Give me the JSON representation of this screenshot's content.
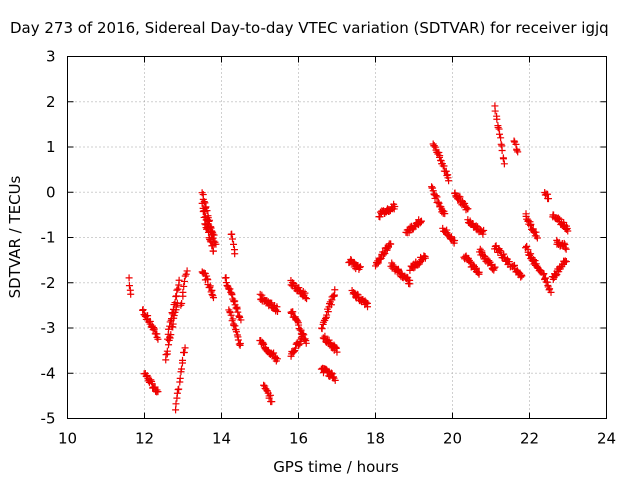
{
  "chart_data": {
    "type": "scatter",
    "title": "Day 273 of 2016, Sidereal Day-to-day VTEC variation (SDTVAR) for receiver igjq",
    "xlabel": "GPS time / hours",
    "ylabel": "SDTVAR / TECUs",
    "xlim": [
      10,
      24
    ],
    "ylim": [
      -5,
      3
    ],
    "xticks": [
      10,
      12,
      14,
      16,
      18,
      20,
      22,
      24
    ],
    "yticks": [
      -5,
      -4,
      -3,
      -2,
      -1,
      0,
      1,
      2,
      3
    ],
    "grid": true,
    "marker": "+",
    "color": "#ee0000",
    "segments": [
      {
        "x0": 11.6,
        "x1": 11.65,
        "y0": -1.9,
        "y1": -2.3
      },
      {
        "x0": 11.95,
        "x1": 12.35,
        "y0": -2.6,
        "y1": -3.2
      },
      {
        "x0": 12.0,
        "x1": 12.35,
        "y0": -4.0,
        "y1": -4.45
      },
      {
        "x0": 12.55,
        "x1": 12.85,
        "y0": -3.7,
        "y1": -2.4
      },
      {
        "x0": 12.6,
        "x1": 12.9,
        "y0": -3.2,
        "y1": -2.0
      },
      {
        "x0": 12.8,
        "x1": 13.05,
        "y0": -4.8,
        "y1": -3.4
      },
      {
        "x0": 12.95,
        "x1": 13.1,
        "y0": -2.5,
        "y1": -1.7
      },
      {
        "x0": 13.5,
        "x1": 13.8,
        "y0": 0.0,
        "y1": -1.0
      },
      {
        "x0": 13.5,
        "x1": 13.85,
        "y0": -0.3,
        "y1": -1.2
      },
      {
        "x0": 13.55,
        "x1": 13.8,
        "y0": -0.6,
        "y1": -1.3
      },
      {
        "x0": 13.5,
        "x1": 13.8,
        "y0": -1.7,
        "y1": -2.3
      },
      {
        "x0": 14.1,
        "x1": 14.5,
        "y0": -1.9,
        "y1": -2.8
      },
      {
        "x0": 14.2,
        "x1": 14.5,
        "y0": -2.6,
        "y1": -3.4
      },
      {
        "x0": 14.25,
        "x1": 14.35,
        "y0": -0.9,
        "y1": -1.3
      },
      {
        "x0": 15.0,
        "x1": 15.45,
        "y0": -2.3,
        "y1": -2.6
      },
      {
        "x0": 15.0,
        "x1": 15.45,
        "y0": -3.3,
        "y1": -3.7
      },
      {
        "x0": 15.1,
        "x1": 15.3,
        "y0": -4.3,
        "y1": -4.6
      },
      {
        "x0": 15.8,
        "x1": 16.2,
        "y0": -2.0,
        "y1": -2.3
      },
      {
        "x0": 15.8,
        "x1": 16.2,
        "y0": -2.6,
        "y1": -3.3
      },
      {
        "x0": 15.8,
        "x1": 16.1,
        "y0": -3.6,
        "y1": -3.2
      },
      {
        "x0": 16.6,
        "x1": 16.95,
        "y0": -3.0,
        "y1": -2.2
      },
      {
        "x0": 16.65,
        "x1": 17.0,
        "y0": -3.2,
        "y1": -3.5
      },
      {
        "x0": 16.6,
        "x1": 16.95,
        "y0": -3.9,
        "y1": -4.1
      },
      {
        "x0": 17.3,
        "x1": 17.6,
        "y0": -1.5,
        "y1": -1.7
      },
      {
        "x0": 17.4,
        "x1": 17.8,
        "y0": -2.2,
        "y1": -2.5
      },
      {
        "x0": 18.0,
        "x1": 18.4,
        "y0": -1.6,
        "y1": -1.1
      },
      {
        "x0": 18.1,
        "x1": 18.5,
        "y0": -0.5,
        "y1": -0.3
      },
      {
        "x0": 18.4,
        "x1": 18.9,
        "y0": -1.6,
        "y1": -2.0
      },
      {
        "x0": 18.8,
        "x1": 19.2,
        "y0": -0.9,
        "y1": -0.6
      },
      {
        "x0": 18.9,
        "x1": 19.3,
        "y0": -1.7,
        "y1": -1.4
      },
      {
        "x0": 19.45,
        "x1": 19.8,
        "y0": 0.1,
        "y1": -0.5
      },
      {
        "x0": 19.5,
        "x1": 19.9,
        "y0": 1.1,
        "y1": 0.3
      },
      {
        "x0": 19.75,
        "x1": 20.05,
        "y0": -0.8,
        "y1": -1.1
      },
      {
        "x0": 20.05,
        "x1": 20.4,
        "y0": 0.0,
        "y1": -0.4
      },
      {
        "x0": 20.4,
        "x1": 20.8,
        "y0": -0.6,
        "y1": -0.9
      },
      {
        "x0": 20.3,
        "x1": 20.7,
        "y0": -1.4,
        "y1": -1.8
      },
      {
        "x0": 20.7,
        "x1": 21.1,
        "y0": -1.3,
        "y1": -1.7
      },
      {
        "x0": 21.1,
        "x1": 21.35,
        "y0": 1.9,
        "y1": 0.6
      },
      {
        "x0": 21.6,
        "x1": 21.7,
        "y0": 1.1,
        "y1": 0.9
      },
      {
        "x0": 21.1,
        "x1": 21.5,
        "y0": -1.2,
        "y1": -1.6
      },
      {
        "x0": 21.55,
        "x1": 21.8,
        "y0": -1.6,
        "y1": -1.9
      },
      {
        "x0": 21.9,
        "x1": 22.2,
        "y0": -0.5,
        "y1": -1.0
      },
      {
        "x0": 21.9,
        "x1": 22.3,
        "y0": -1.2,
        "y1": -1.8
      },
      {
        "x0": 22.35,
        "x1": 22.55,
        "y0": -1.8,
        "y1": -2.2
      },
      {
        "x0": 22.4,
        "x1": 22.5,
        "y0": 0.0,
        "y1": -0.1
      },
      {
        "x0": 22.6,
        "x1": 23.0,
        "y0": -0.5,
        "y1": -0.8
      },
      {
        "x0": 22.7,
        "x1": 22.95,
        "y0": -1.1,
        "y1": -1.2
      },
      {
        "x0": 22.6,
        "x1": 22.95,
        "y0": -1.9,
        "y1": -1.5
      }
    ]
  }
}
